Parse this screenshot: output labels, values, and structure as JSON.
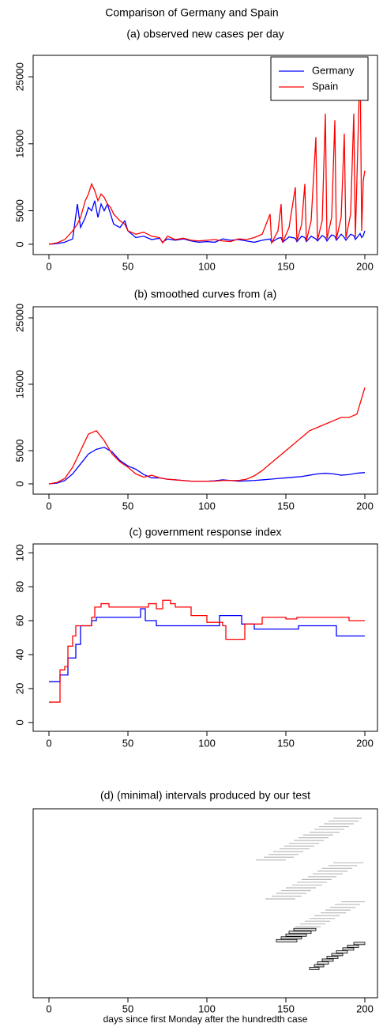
{
  "title": "Comparison of Germany and Spain",
  "chart_data": [
    {
      "type": "line",
      "title": "(a) observed new cases per day",
      "x": [
        0,
        5,
        10,
        15,
        18,
        20,
        23,
        25,
        27,
        29,
        31,
        33,
        35,
        37,
        39,
        41,
        45,
        48,
        50,
        55,
        60,
        65,
        70,
        72,
        75,
        80,
        85,
        90,
        95,
        100,
        105,
        110,
        115,
        120,
        125,
        130,
        135,
        140,
        141,
        145,
        147,
        148,
        152,
        156,
        157,
        160,
        162,
        163,
        166,
        169,
        170,
        173,
        175,
        176,
        179,
        181,
        182,
        185,
        187,
        188,
        191,
        193,
        194,
        197,
        198,
        199,
        200
      ],
      "series": [
        {
          "name": "Germany",
          "color": "#0000ff",
          "values": [
            0,
            100,
            300,
            800,
            6000,
            2500,
            4000,
            5500,
            5000,
            6500,
            4000,
            6000,
            5000,
            6000,
            4500,
            3000,
            2500,
            3500,
            2000,
            1000,
            1200,
            700,
            900,
            300,
            800,
            600,
            800,
            500,
            300,
            400,
            300,
            800,
            600,
            700,
            500,
            300,
            600,
            800,
            300,
            900,
            1000,
            300,
            1100,
            900,
            400,
            1200,
            1000,
            400,
            1200,
            800,
            500,
            1300,
            1000,
            500,
            1400,
            1200,
            600,
            1500,
            1000,
            600,
            1500,
            1300,
            700,
            1600,
            1000,
            1300,
            2000
          ]
        },
        {
          "name": "Spain",
          "color": "#ff0000",
          "values": [
            0,
            200,
            700,
            2000,
            3000,
            4000,
            6500,
            7500,
            9000,
            8000,
            6500,
            7500,
            7000,
            6000,
            5500,
            4500,
            3500,
            3000,
            2000,
            1500,
            1800,
            1200,
            1000,
            200,
            1200,
            700,
            900,
            600,
            500,
            600,
            700,
            500,
            400,
            800,
            700,
            1000,
            1500,
            4500,
            200,
            2000,
            6000,
            300,
            2500,
            8500,
            500,
            3000,
            9000,
            500,
            3500,
            16000,
            600,
            3500,
            19500,
            800,
            4000,
            18500,
            800,
            4000,
            16500,
            900,
            4500,
            19500,
            1000,
            27500,
            2000,
            9500,
            11000
          ]
        }
      ],
      "xlim": [
        -10,
        208
      ],
      "ylim": [
        -1540,
        28200
      ],
      "xticks": [
        0,
        50,
        100,
        150,
        200
      ],
      "yticks": [
        0,
        5000,
        15000,
        25000
      ],
      "legend": "topright"
    },
    {
      "type": "line",
      "title": "(b) smoothed curves from (a)",
      "x": [
        0,
        5,
        10,
        15,
        20,
        25,
        30,
        35,
        40,
        45,
        50,
        55,
        60,
        65,
        70,
        75,
        80,
        85,
        90,
        95,
        100,
        105,
        110,
        115,
        120,
        125,
        130,
        135,
        140,
        145,
        150,
        155,
        160,
        165,
        170,
        175,
        180,
        185,
        190,
        195,
        200
      ],
      "series": [
        {
          "name": "Germany",
          "color": "#0000ff",
          "values": [
            0,
            100,
            500,
            1500,
            3000,
            4500,
            5200,
            5500,
            4800,
            3500,
            2700,
            2200,
            1400,
            900,
            900,
            700,
            600,
            500,
            400,
            400,
            400,
            450,
            600,
            500,
            400,
            450,
            500,
            600,
            700,
            800,
            900,
            1000,
            1100,
            1300,
            1500,
            1600,
            1500,
            1300,
            1400,
            1600,
            1700
          ]
        },
        {
          "name": "Spain",
          "color": "#ff0000",
          "values": [
            0,
            200,
            800,
            2500,
            5000,
            7500,
            8000,
            6500,
            4500,
            3300,
            2500,
            1500,
            1000,
            1300,
            900,
            700,
            600,
            500,
            400,
            400,
            400,
            400,
            500,
            500,
            500,
            700,
            1200,
            2000,
            3000,
            4000,
            5000,
            6000,
            7000,
            8000,
            8500,
            9000,
            9500,
            10000,
            10000,
            10500,
            14500
          ]
        }
      ],
      "xlim": [
        -10,
        208
      ],
      "ylim": [
        -1550,
        26670
      ],
      "xticks": [
        0,
        50,
        100,
        150,
        200
      ],
      "yticks": [
        0,
        5000,
        15000,
        25000
      ]
    },
    {
      "type": "line",
      "title": "(c) government response index",
      "drawstyle": "steps-post",
      "series": [
        {
          "name": "Germany",
          "color": "#0000ff",
          "x": [
            0,
            7,
            12,
            17,
            20,
            27,
            30,
            58,
            61,
            68,
            108,
            122,
            130,
            158,
            182,
            200
          ],
          "values": [
            24,
            28,
            38,
            46,
            57,
            60,
            62,
            67,
            60,
            57,
            63,
            58,
            55,
            57,
            51,
            51
          ]
        },
        {
          "name": "Spain",
          "color": "#ff0000",
          "x": [
            0,
            7,
            10,
            12,
            15,
            17,
            27,
            29,
            33,
            38,
            60,
            63,
            68,
            72,
            77,
            80,
            90,
            100,
            110,
            112,
            124,
            135,
            150,
            157,
            190,
            200
          ],
          "values": [
            12,
            31,
            33,
            45,
            51,
            57,
            62,
            68,
            70,
            68,
            68,
            70,
            67,
            72,
            70,
            68,
            63,
            59,
            57,
            49,
            58,
            62,
            61,
            62,
            60,
            60
          ]
        }
      ],
      "xlim": [
        -10,
        208
      ],
      "ylim": [
        -5.2,
        105.2
      ],
      "xticks": [
        0,
        50,
        100,
        150,
        200
      ],
      "yticks": [
        0,
        20,
        40,
        60,
        80,
        100
      ]
    },
    {
      "type": "interval",
      "title": "(d) (minimal) intervals produced by our test",
      "x_label": "days since first Monday after the hundredth case",
      "groups": [
        {
          "color": "#bbbbbb",
          "intervals": [
            [
              180,
              198
            ],
            [
              177,
              196
            ],
            [
              174,
              193
            ],
            [
              171,
              190
            ],
            [
              168,
              187
            ],
            [
              165,
              184
            ],
            [
              161,
              180
            ],
            [
              158,
              177
            ],
            [
              155,
              174
            ],
            [
              152,
              171
            ],
            [
              149,
              168
            ],
            [
              146,
              165
            ],
            [
              142,
              161
            ],
            [
              139,
              158
            ],
            [
              136,
              155
            ],
            [
              131,
              150
            ],
            [
              180,
              199
            ],
            [
              177,
              195
            ],
            [
              173,
              192
            ],
            [
              170,
              189
            ],
            [
              167,
              186
            ],
            [
              164,
              182
            ],
            [
              160,
              179
            ],
            [
              157,
              176
            ],
            [
              154,
              173
            ],
            [
              150,
              169
            ],
            [
              147,
              166
            ],
            [
              144,
              163
            ],
            [
              141,
              160
            ],
            [
              137,
              156
            ],
            [
              185,
              200
            ],
            [
              181,
              197
            ],
            [
              178,
              194
            ],
            [
              175,
              191
            ],
            [
              172,
              188
            ],
            [
              168,
              184
            ],
            [
              165,
              181
            ],
            [
              162,
              178
            ],
            [
              159,
              175
            ],
            [
              156,
              172
            ]
          ]
        },
        {
          "color": "#dddddd",
          "edgecolor": "#000000",
          "intervals": [
            [
              155,
              169
            ],
            [
              152,
              166
            ],
            [
              150,
              163
            ],
            [
              147,
              160
            ],
            [
              144,
              157
            ],
            [
              193,
              200
            ],
            [
              189,
              196
            ],
            [
              186,
              193
            ],
            [
              182,
              189
            ],
            [
              179,
              186
            ],
            [
              176,
              183
            ],
            [
              173,
              180
            ],
            [
              170,
              177
            ],
            [
              168,
              174
            ],
            [
              165,
              171
            ]
          ]
        }
      ],
      "xlim": [
        -10,
        208
      ],
      "xticks": [
        0,
        50,
        100,
        150,
        200
      ]
    }
  ]
}
